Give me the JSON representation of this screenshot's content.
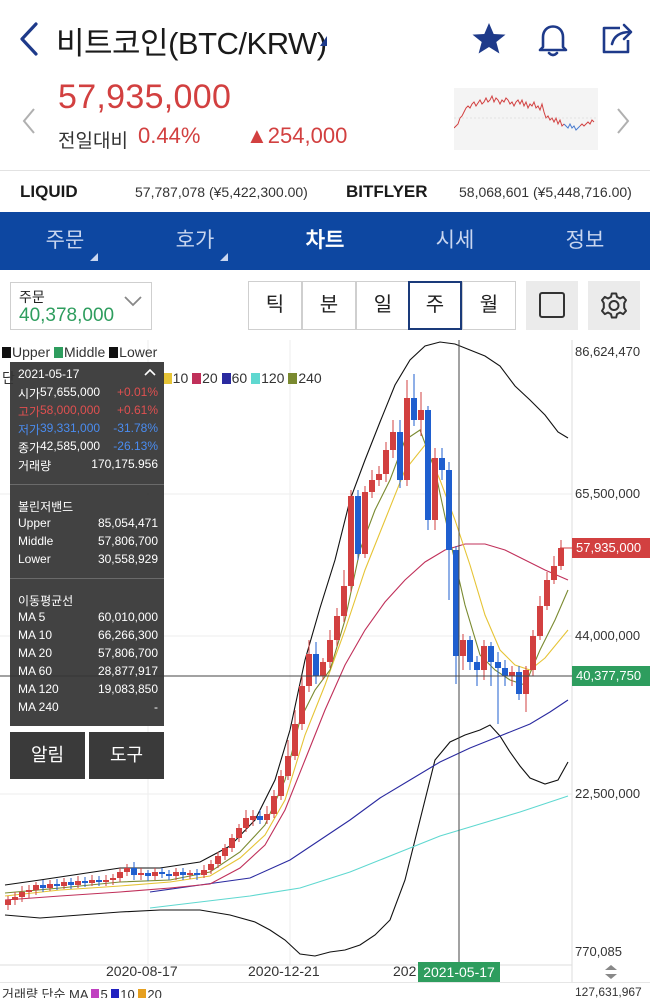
{
  "header": {
    "title": "비트코인(BTC/KRW)",
    "icons": [
      "back-chevron-icon",
      "star-icon",
      "bell-icon",
      "share-icon"
    ]
  },
  "price": {
    "current": "57,935,000",
    "change_label": "전일대비",
    "change_pct": "0.44%",
    "change_abs": "▲254,000",
    "color_up": "#d24040"
  },
  "exchanges": [
    {
      "name": "LIQUID",
      "value": "57,787,078 (¥5,422,300.00)"
    },
    {
      "name": "BITFLYER",
      "value": "58,068,601 (¥5,448,716.00)"
    }
  ],
  "tabs": [
    {
      "label": "주문",
      "active": false
    },
    {
      "label": "호가",
      "active": false
    },
    {
      "label": "차트",
      "active": true
    },
    {
      "label": "시세",
      "active": false
    },
    {
      "label": "정보",
      "active": false
    }
  ],
  "controls": {
    "order_label": "주문",
    "order_value": "40,378,000",
    "periods": [
      "틱",
      "분",
      "일",
      "주",
      "월"
    ],
    "active_period": "주"
  },
  "chart": {
    "y_labels": {
      "top": "86,624,470",
      "mid1": "65,500,000",
      "mid2": "44,000,000",
      "mid3": "22,500,000",
      "bottom": "770,085"
    },
    "current_price_tag": "57,935,000",
    "crosshair_price_tag": "40,377,750",
    "legend_bands": [
      "Upper",
      "Middle",
      "Lower"
    ],
    "legend_ma_prefix": "단",
    "legend_ma_periods": [
      "10",
      "20",
      "60",
      "120",
      "240"
    ],
    "x_labels": [
      "2020-08-17",
      "2020-12-21",
      "202"
    ],
    "crosshair_date": "2021-05-17",
    "volume_legend": "거래량 단순 MA",
    "volume_ma_periods": [
      "5",
      "10",
      "20"
    ],
    "volume_right": "127,631,967"
  },
  "info": {
    "date": "2021-05-17",
    "ohlc": [
      {
        "k": "시가",
        "v": "57,655,000",
        "p": "+0.01%",
        "color": "#ffffff"
      },
      {
        "k": "고가",
        "v": "58,000,000",
        "p": "+0.61%",
        "color": "#e05050"
      },
      {
        "k": "저가",
        "v": "39,331,000",
        "p": "-31.78%",
        "color": "#4a8cf0"
      },
      {
        "k": "종가",
        "v": "42,585,000",
        "p": "-26.13%",
        "color": "#ffffff"
      }
    ],
    "volume_label": "거래량",
    "volume": "170,175.956",
    "bb_title": "볼린저밴드",
    "bb": [
      {
        "k": "Upper",
        "v": "85,054,471"
      },
      {
        "k": "Middle",
        "v": "57,806,700"
      },
      {
        "k": "Lower",
        "v": "30,558,929"
      }
    ],
    "ma_title": "이동평균선",
    "ma": [
      {
        "k": "MA 5",
        "v": "60,010,000"
      },
      {
        "k": "MA 10",
        "v": "66,266,300"
      },
      {
        "k": "MA 20",
        "v": "57,806,700"
      },
      {
        "k": "MA 60",
        "v": "28,877,917"
      },
      {
        "k": "MA 120",
        "v": "19,083,850"
      },
      {
        "k": "MA 240",
        "v": "-"
      }
    ],
    "alarm_label": "알림",
    "tools_label": "도구"
  }
}
